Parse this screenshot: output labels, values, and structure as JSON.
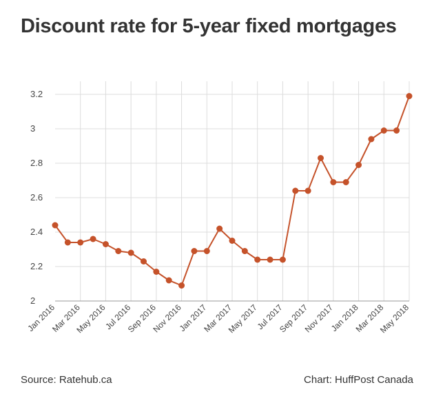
{
  "title": "Discount rate for 5-year fixed mortgages",
  "footer": {
    "source": "Source: Ratehub.ca",
    "credit": "Chart: HuffPost Canada"
  },
  "colors": {
    "series": "#c5522a",
    "grid": "#dcdcdc",
    "axis": "#999999"
  },
  "chart_data": {
    "type": "line",
    "title": "Discount rate for 5-year fixed mortgages",
    "xlabel": "",
    "ylabel": "",
    "grid": true,
    "legend": "none",
    "y_tick_labels": [
      "2",
      "2.2",
      "2.4",
      "2.6",
      "2.8",
      "3",
      "3.2"
    ],
    "y_tick_values": [
      2.0,
      2.2,
      2.4,
      2.6,
      2.8,
      3.0,
      3.2
    ],
    "ylim": [
      2.0,
      3.2
    ],
    "x_tick_labels": [
      "Jan 2016",
      "Mar 2016",
      "May 2016",
      "Jul 2016",
      "Sep 2016",
      "Nov 2016",
      "Jan 2017",
      "Mar 2017",
      "May 2017",
      "Jul 2017",
      "Sep 2017",
      "Nov 2017",
      "Jan 2018",
      "Mar 2018",
      "May 2018"
    ],
    "categories": [
      "Jan 2016",
      "Feb 2016",
      "Mar 2016",
      "Apr 2016",
      "May 2016",
      "Jun 2016",
      "Jul 2016",
      "Aug 2016",
      "Sep 2016",
      "Oct 2016",
      "Nov 2016",
      "Dec 2016",
      "Jan 2017",
      "Feb 2017",
      "Mar 2017",
      "Apr 2017",
      "May 2017",
      "Jun 2017",
      "Jul 2017",
      "Aug 2017",
      "Sep 2017",
      "Oct 2017",
      "Nov 2017",
      "Dec 2017",
      "Jan 2018",
      "Feb 2018",
      "Mar 2018",
      "Apr 2018",
      "May 2018"
    ],
    "values": [
      2.44,
      2.34,
      2.34,
      2.36,
      2.33,
      2.29,
      2.28,
      2.23,
      2.17,
      2.12,
      2.09,
      2.29,
      2.29,
      2.42,
      2.35,
      2.29,
      2.24,
      2.24,
      2.24,
      2.64,
      2.64,
      2.83,
      2.69,
      2.69,
      2.79,
      2.94,
      2.99,
      2.99,
      3.19
    ]
  }
}
